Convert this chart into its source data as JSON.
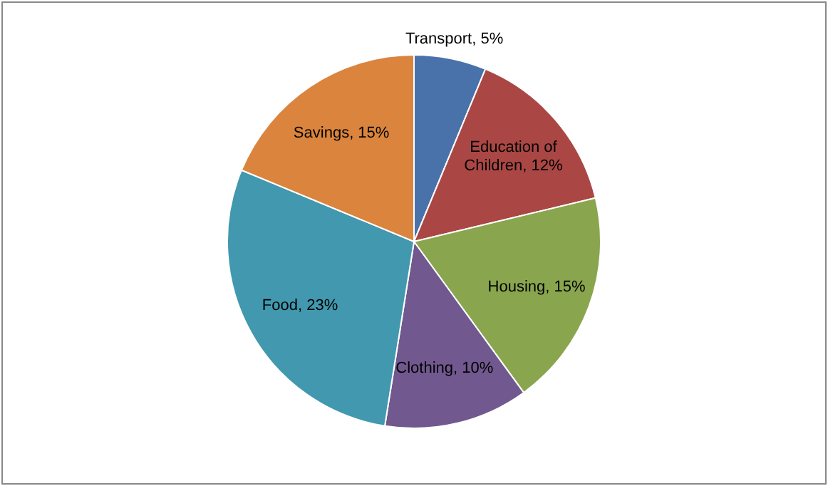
{
  "chart_data": {
    "type": "pie",
    "categories": [
      "Transport",
      "Education of Children",
      "Housing",
      "Clothing",
      "Food",
      "Savings"
    ],
    "values": [
      5,
      12,
      15,
      10,
      23,
      15
    ],
    "value_labels": [
      "5%",
      "12%",
      "15%",
      "10%",
      "23%",
      "15%"
    ],
    "colors": [
      "#4a72aa",
      "#aa4744",
      "#89a54e",
      "#71588f",
      "#4198af",
      "#db843d"
    ],
    "legend": false
  }
}
